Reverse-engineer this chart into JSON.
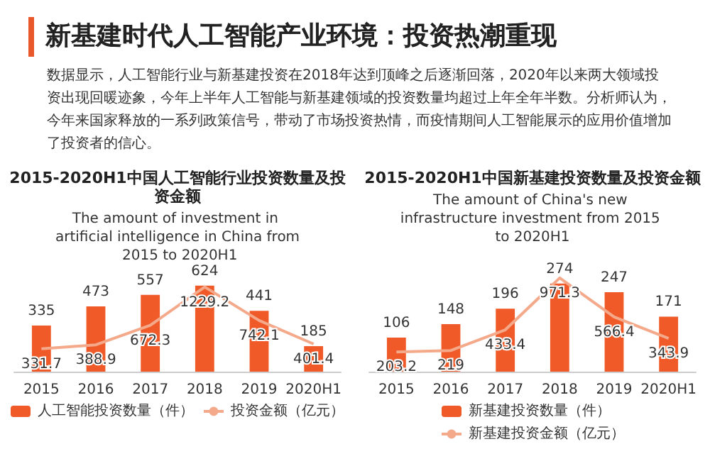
{
  "chart_data": [
    {
      "type": "other",
      "title": "新基建时代人工智能产业环境：投资热潮重现",
      "annotations": [
        "数据显示，人工智能行业与新基建投资在2018年达到顶峰之后逐渐回落，2020年以来两大领域投资出现回暖迹象，今年上半年人工智能与新基建领域的投资数量均超过上年全年半数。分析师认为，今年来国家释放的一系列政策信号，带动了市场投资热情，而疫情期间人工智能展示的应用价值增加了投资者的信心。"
      ]
    },
    {
      "type": "bar",
      "title": "2015-2020H1中国人工智能行业投资数量及投资金额",
      "subtitle": "The amount of investment in artificial intelligence in China from 2015 to 2020H1",
      "categories": [
        "2015",
        "2016",
        "2017",
        "2018",
        "2019",
        "2020H1"
      ],
      "series": [
        {
          "name": "人工智能投资数量（件）",
          "color": "#f05a28",
          "values": [
            335,
            473,
            557,
            624,
            441,
            185
          ]
        },
        {
          "name": "投资金额（亿元）",
          "type": "line",
          "axis": "y2",
          "color": "#f4a98a",
          "values": [
            331.7,
            388.9,
            672.3,
            1229.2,
            742.1,
            401.4
          ]
        }
      ],
      "data_labels": true,
      "legend": "bottom",
      "marker": "none",
      "tick_labels": "x"
    },
    {
      "type": "bar",
      "title": "2015-2020H1中国新基建投资数量及投资金额",
      "subtitle": "The amount of China's new infrastructure investment from 2015 to 2020H1",
      "categories": [
        "2015",
        "2016",
        "2017",
        "2018",
        "2019",
        "2020H1"
      ],
      "series": [
        {
          "name": "新基建投资数量（件）",
          "color": "#f05a28",
          "values": [
            106,
            148,
            196,
            274,
            247,
            171
          ]
        },
        {
          "name": "新基建投资金额（亿元）",
          "type": "line",
          "axis": "y2",
          "color": "#f4a98a",
          "values": [
            203.2,
            219.0,
            433.4,
            971.3,
            566.4,
            343.9
          ]
        }
      ],
      "data_labels": true,
      "legend": "bottom",
      "marker": "none",
      "tick_labels": "x"
    }
  ]
}
